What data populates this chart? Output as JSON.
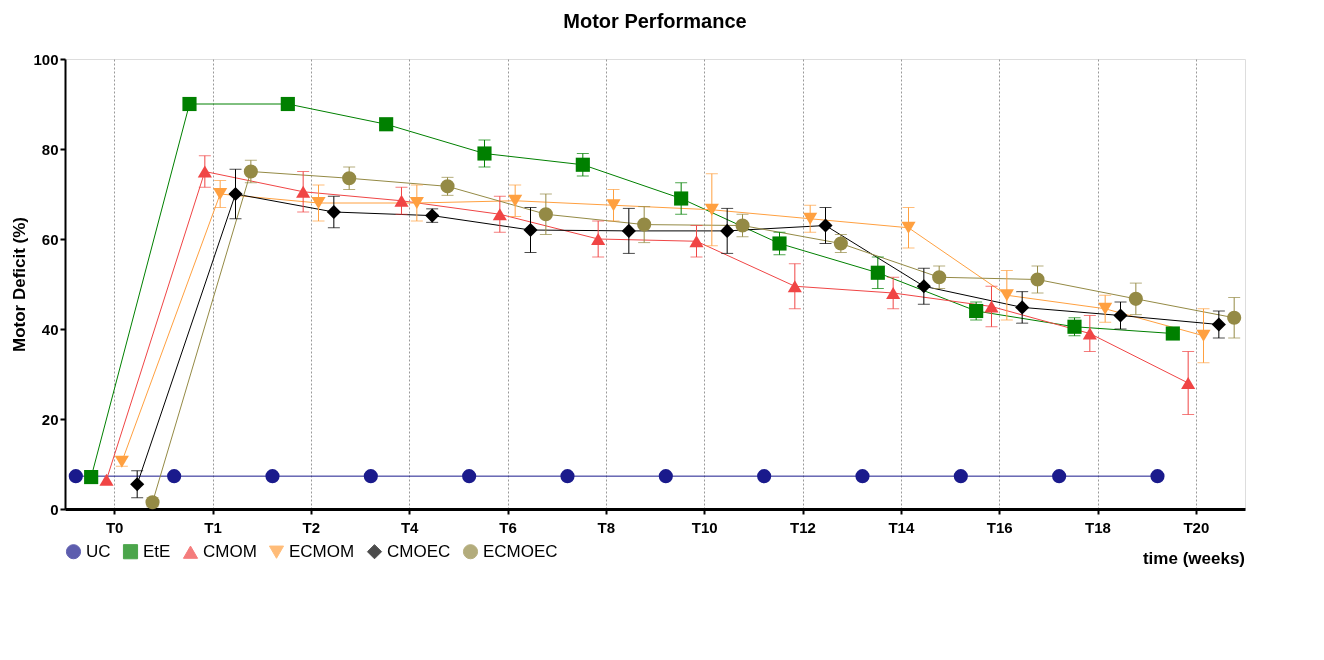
{
  "chart_data": {
    "type": "line",
    "title": "Motor Performance",
    "xlabel": "time (weeks)",
    "ylabel": "Motor Deficit (%)",
    "categories": [
      "T0",
      "T1",
      "T2",
      "T4",
      "T6",
      "T8",
      "T10",
      "T12",
      "T14",
      "T16",
      "T18",
      "T20"
    ],
    "ylim": [
      0,
      100
    ],
    "yticks": [
      0,
      20,
      40,
      60,
      80,
      100
    ],
    "grid": "x",
    "legend": "bottom",
    "series": [
      {
        "name": "UC",
        "color": "#1a1a8c",
        "marker": "circle",
        "values": [
          7.3,
          7.3,
          7.3,
          7.3,
          7.3,
          7.3,
          7.3,
          7.3,
          7.3,
          7.3,
          7.3,
          7.3
        ]
      },
      {
        "name": "EtE",
        "color": "#008000",
        "marker": "square",
        "values": [
          7.1,
          90,
          90,
          85.5,
          79,
          76.5,
          69,
          59,
          52.5,
          44,
          40.5,
          39
        ],
        "errors": [
          null,
          null,
          null,
          1,
          3,
          2.5,
          3.5,
          2.5,
          3.5,
          2,
          2,
          null
        ]
      },
      {
        "name": "CMOM",
        "color": "#f04545",
        "marker": "triangle",
        "values": [
          6.5,
          75,
          70.5,
          68.5,
          65.5,
          60,
          59.5,
          49.5,
          48,
          45,
          39,
          28
        ],
        "errors": [
          null,
          3.5,
          4.5,
          3,
          4,
          4,
          3.5,
          5,
          3.5,
          4.5,
          4,
          7
        ]
      },
      {
        "name": "ECMOM",
        "color": "#ffa040",
        "marker": "triangle-down",
        "values": [
          10.5,
          70,
          68,
          68,
          68.5,
          67.5,
          66.5,
          64.5,
          62.5,
          47.5,
          44.5,
          38.5
        ],
        "errors": [
          1,
          3,
          4,
          4,
          3.5,
          3.5,
          8,
          3,
          4.5,
          5.5,
          3,
          6
        ]
      },
      {
        "name": "CMOEC",
        "color": "#000000",
        "marker": "diamond",
        "values": [
          5.5,
          70,
          66,
          65.2,
          62,
          61.8,
          61.8,
          63,
          49.5,
          44.8,
          43,
          41
        ],
        "errors": [
          3,
          5.5,
          3.5,
          1.5,
          5,
          5,
          5,
          4,
          4,
          3.5,
          3,
          3
        ]
      },
      {
        "name": "ECMOEC",
        "color": "#948a45",
        "marker": "circle",
        "values": [
          1.5,
          75,
          73.5,
          71.7,
          65.5,
          63.2,
          63,
          59,
          51.5,
          51,
          46.7,
          42.5
        ],
        "errors": [
          1,
          2.5,
          2.5,
          2,
          4.5,
          4,
          2.5,
          2,
          2.5,
          3,
          3.5,
          4.5
        ]
      }
    ]
  }
}
